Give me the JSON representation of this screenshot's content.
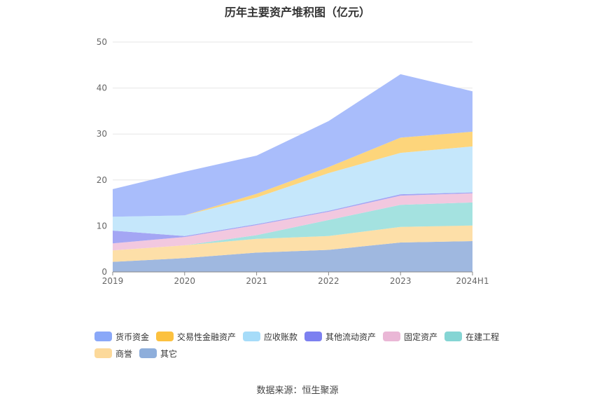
{
  "chart_data": {
    "type": "area",
    "stacked": true,
    "title": "历年主要资产堆积图（亿元）",
    "categories": [
      "2019",
      "2020",
      "2021",
      "2022",
      "2023",
      "2024H1"
    ],
    "ylim": [
      0,
      50
    ],
    "yticks": [
      "0",
      "10",
      "20",
      "30",
      "40",
      "50"
    ],
    "grid": true,
    "legend_position": "bottom",
    "series": [
      {
        "name": "其它",
        "color": "#9fb8e0",
        "values": [
          2.2,
          3.0,
          4.2,
          4.8,
          6.4,
          6.7
        ]
      },
      {
        "name": "商誉",
        "color": "#fddfa8",
        "values": [
          2.5,
          2.8,
          3.0,
          3.0,
          3.4,
          3.4
        ]
      },
      {
        "name": "在建工程",
        "color": "#a4e2e0",
        "values": [
          0.0,
          0.0,
          0.8,
          3.5,
          4.8,
          5.0
        ]
      },
      {
        "name": "固定资产",
        "color": "#f2c8df",
        "values": [
          1.5,
          1.8,
          2.2,
          1.8,
          2.0,
          2.0
        ]
      },
      {
        "name": "其他流动资产",
        "color": "#a4a6f4",
        "values": [
          2.8,
          0.2,
          0.2,
          0.2,
          0.3,
          0.2
        ]
      },
      {
        "name": "应收账款",
        "color": "#c5e7fb",
        "values": [
          3.0,
          4.5,
          5.8,
          8.2,
          9.0,
          10.0
        ]
      },
      {
        "name": "交易性金融资产",
        "color": "#fdd57b",
        "values": [
          0.0,
          0.0,
          0.8,
          1.3,
          3.3,
          3.2
        ]
      },
      {
        "name": "货币资金",
        "color": "#a9bdfb",
        "values": [
          6.0,
          9.5,
          8.3,
          10.0,
          13.8,
          8.8
        ]
      }
    ],
    "legend": [
      {
        "name": "货币资金",
        "color": "#8aa8f8"
      },
      {
        "name": "交易性金融资产",
        "color": "#fcc13f"
      },
      {
        "name": "应收账款",
        "color": "#a6dcf9"
      },
      {
        "name": "其他流动资产",
        "color": "#7c80f0"
      },
      {
        "name": "固定资产",
        "color": "#eab7d6"
      },
      {
        "name": "在建工程",
        "color": "#85d5d4"
      },
      {
        "name": "商誉",
        "color": "#fcd99a"
      },
      {
        "name": "其它",
        "color": "#8eaedb"
      }
    ]
  },
  "footer": {
    "source": "数据来源：恒生聚源"
  }
}
